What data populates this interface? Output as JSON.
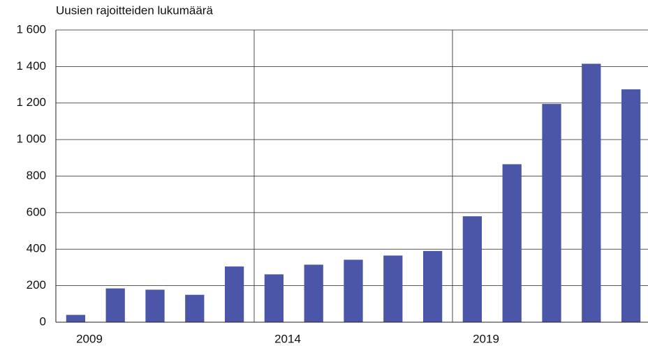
{
  "chart_data": {
    "type": "bar",
    "y_label": "Uusien rajoitteiden lukumäärä",
    "categories": [
      "2009",
      null,
      null,
      null,
      null,
      "2014",
      null,
      null,
      null,
      null,
      "2019",
      null,
      null,
      null,
      null
    ],
    "values": [
      40,
      185,
      178,
      150,
      305,
      262,
      315,
      342,
      365,
      390,
      580,
      865,
      1195,
      1415,
      1275
    ],
    "color": "#4b56a8",
    "ylim": [
      0,
      1600
    ],
    "yticks": [
      0,
      200,
      400,
      600,
      800,
      {
        "value": 1000,
        "label": "1 000"
      },
      {
        "value": 1200,
        "label": "1 200"
      },
      {
        "value": 1400,
        "label": "1 400"
      },
      {
        "value": 1600,
        "label": "1 600"
      }
    ],
    "grid": true
  }
}
